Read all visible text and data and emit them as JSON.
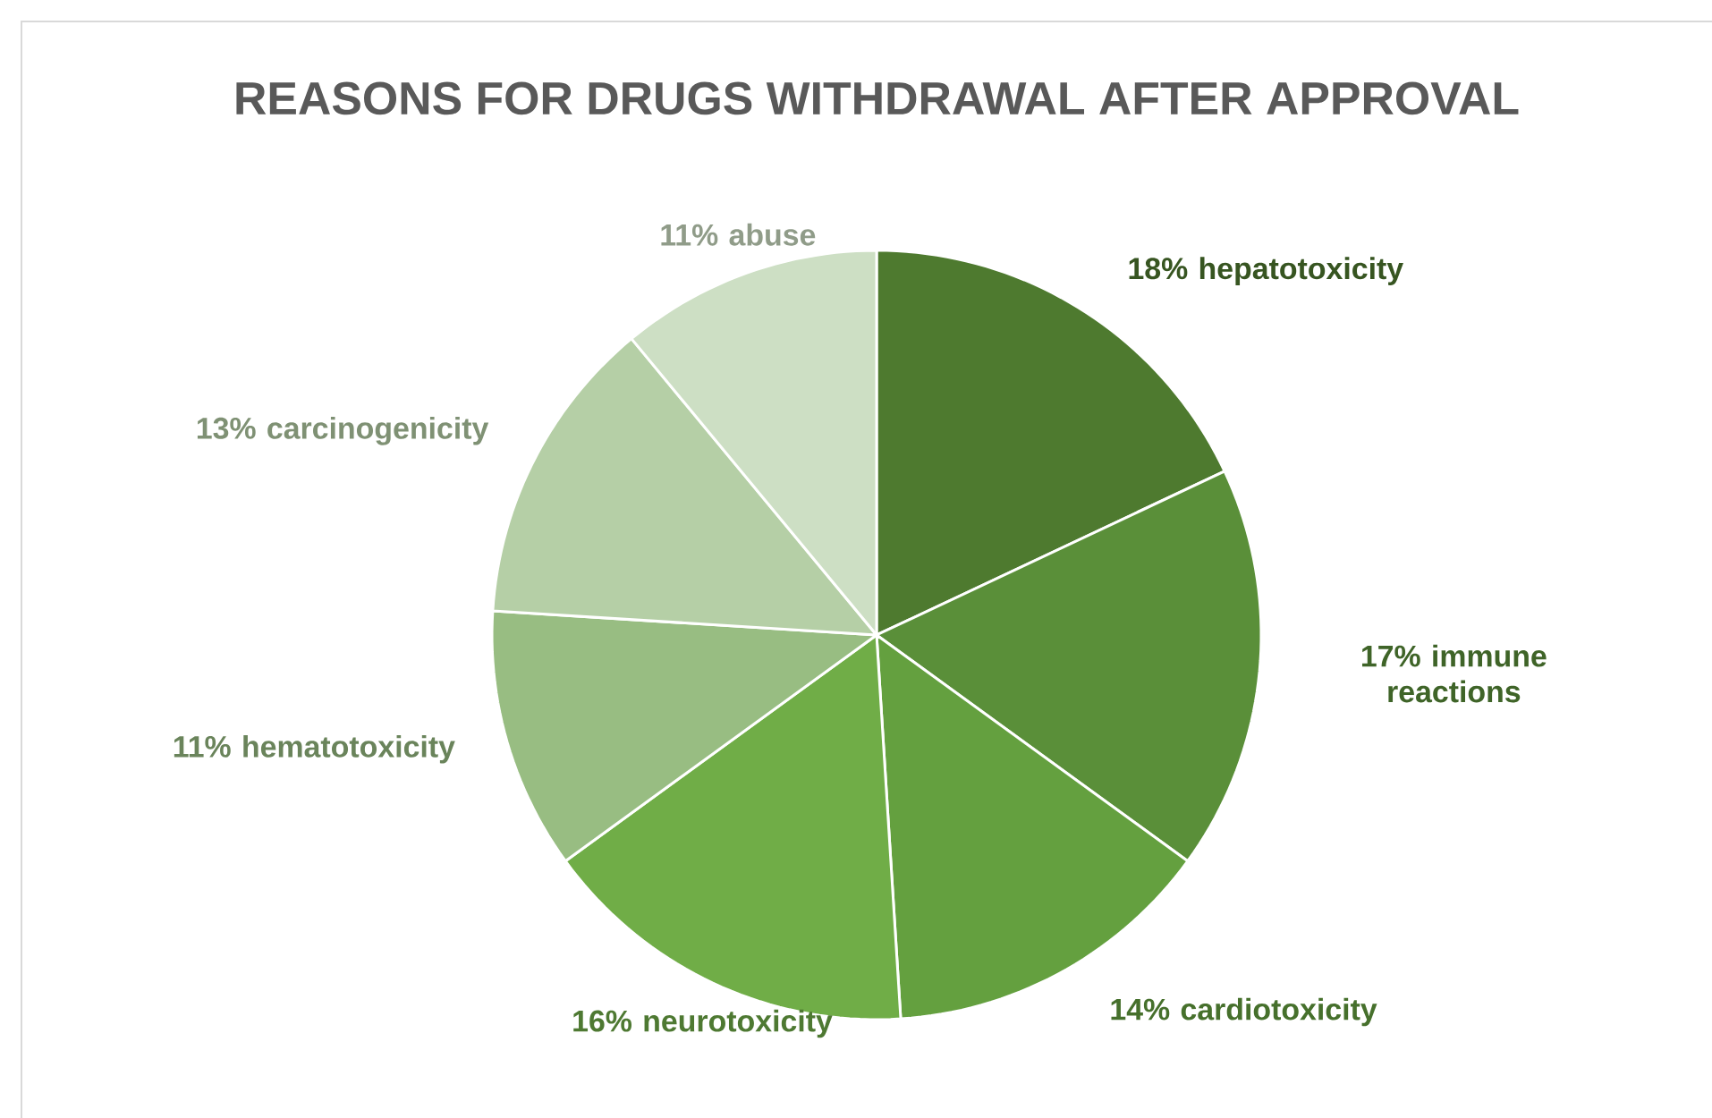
{
  "chart_data": {
    "type": "pie",
    "title": "REASONS FOR DRUGS WITHDRAWAL AFTER APPROVAL",
    "categories": [
      "18% hepatotoxicity",
      "17% immune reactions",
      "14% cardiotoxicity",
      "16% neurotoxicity",
      "11% hematotoxicity",
      "13% carcinogenicity",
      "11% abuse"
    ],
    "values": [
      18,
      17,
      14,
      16,
      11,
      13,
      11
    ],
    "colors": [
      "#4e7a2f",
      "#5a8f39",
      "#64a03f",
      "#70ad47",
      "#98bd82",
      "#b5cfa6",
      "#cddfc4"
    ]
  }
}
